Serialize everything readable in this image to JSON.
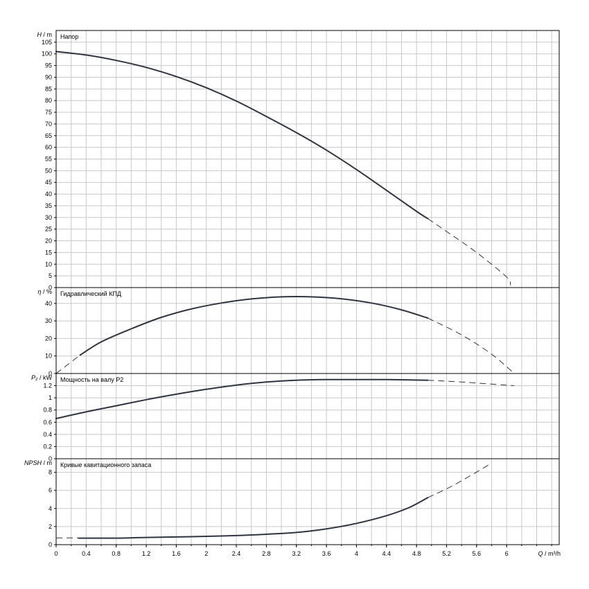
{
  "chart_data": [
    {
      "type": "line",
      "title": "Напор",
      "ylabel_var": "H",
      "ylabel_unit": " / m",
      "ylim": [
        0,
        110
      ],
      "yticks": [
        0,
        5,
        10,
        15,
        20,
        25,
        30,
        35,
        40,
        45,
        50,
        55,
        60,
        65,
        70,
        75,
        80,
        85,
        90,
        95,
        100,
        105
      ],
      "series": [
        {
          "style": "solid",
          "points": [
            [
              0.0,
              101
            ],
            [
              0.4,
              99.5
            ],
            [
              0.8,
              97.2
            ],
            [
              1.2,
              94.2
            ],
            [
              1.6,
              90.3
            ],
            [
              2.0,
              85.5
            ],
            [
              2.4,
              79.8
            ],
            [
              2.8,
              73.2
            ],
            [
              3.2,
              66.3
            ],
            [
              3.6,
              58.8
            ],
            [
              4.0,
              50.5
            ],
            [
              4.4,
              41.6
            ],
            [
              4.8,
              32.6
            ],
            [
              4.95,
              29.5
            ]
          ]
        },
        {
          "style": "dashed",
          "points": [
            [
              4.95,
              29.5
            ],
            [
              5.2,
              24
            ],
            [
              5.6,
              15
            ],
            [
              6.0,
              4.5
            ],
            [
              6.05,
              1
            ]
          ]
        }
      ]
    },
    {
      "type": "line",
      "title": "Гидравлический КПД",
      "ylabel_var": "η",
      "ylabel_unit": " / %",
      "ylim": [
        0,
        49
      ],
      "yticks": [
        0,
        10,
        20,
        30,
        40
      ],
      "series": [
        {
          "style": "solid",
          "points": [
            [
              0.32,
              10.5
            ],
            [
              0.6,
              18
            ],
            [
              1.0,
              25.5
            ],
            [
              1.4,
              32
            ],
            [
              1.8,
              36.8
            ],
            [
              2.2,
              40.2
            ],
            [
              2.6,
              42.5
            ],
            [
              3.0,
              43.7
            ],
            [
              3.4,
              43.7
            ],
            [
              3.8,
              42.6
            ],
            [
              4.2,
              40.2
            ],
            [
              4.6,
              36.3
            ],
            [
              4.95,
              31.6
            ]
          ]
        },
        {
          "style": "dashed",
          "points": [
            [
              0.0,
              0
            ],
            [
              0.32,
              10.5
            ]
          ]
        },
        {
          "style": "dashed",
          "points": [
            [
              4.95,
              31.6
            ],
            [
              5.4,
              22
            ],
            [
              5.8,
              11
            ],
            [
              6.1,
              0
            ]
          ]
        }
      ]
    },
    {
      "type": "line",
      "title": "Мощность на валу P2",
      "ylabel_var": "P₂",
      "ylabel_unit": " / kW",
      "ylim": [
        0,
        1.4
      ],
      "yticks": [
        0,
        0.2,
        0.4,
        0.6,
        0.8,
        1,
        1.2
      ],
      "series": [
        {
          "style": "solid",
          "points": [
            [
              0.0,
              0.66
            ],
            [
              0.4,
              0.77
            ],
            [
              0.8,
              0.87
            ],
            [
              1.2,
              0.97
            ],
            [
              1.6,
              1.06
            ],
            [
              2.0,
              1.14
            ],
            [
              2.4,
              1.21
            ],
            [
              2.8,
              1.26
            ],
            [
              3.2,
              1.29
            ],
            [
              3.6,
              1.3
            ],
            [
              4.0,
              1.3
            ],
            [
              4.4,
              1.3
            ],
            [
              4.95,
              1.29
            ]
          ]
        },
        {
          "style": "dashed",
          "points": [
            [
              4.95,
              1.29
            ],
            [
              5.4,
              1.26
            ],
            [
              6.1,
              1.2
            ]
          ]
        }
      ]
    },
    {
      "type": "line",
      "title": "Кривые кавитационного запаса",
      "ylabel_var": "NPSH",
      "ylabel_unit": " / m",
      "ylim": [
        0,
        9.5
      ],
      "yticks": [
        0,
        2,
        4,
        6,
        8
      ],
      "series": [
        {
          "style": "dashed",
          "points": [
            [
              0.0,
              0.75
            ],
            [
              0.3,
              0.75
            ]
          ]
        },
        {
          "style": "solid",
          "points": [
            [
              0.3,
              0.72
            ],
            [
              0.8,
              0.72
            ],
            [
              1.2,
              0.8
            ],
            [
              1.6,
              0.85
            ],
            [
              2.0,
              0.92
            ],
            [
              2.4,
              1.0
            ],
            [
              2.8,
              1.15
            ],
            [
              3.2,
              1.35
            ],
            [
              3.6,
              1.75
            ],
            [
              4.0,
              2.35
            ],
            [
              4.4,
              3.2
            ],
            [
              4.7,
              4.1
            ],
            [
              4.95,
              5.2
            ]
          ]
        },
        {
          "style": "dashed",
          "points": [
            [
              4.95,
              5.2
            ],
            [
              5.3,
              6.6
            ],
            [
              5.8,
              9.0
            ]
          ]
        }
      ]
    }
  ],
  "x_axis": {
    "label": "Q / m³/h",
    "label_var": "Q",
    "label_unit": " / m³/h",
    "xlim": [
      0,
      6.7
    ],
    "ticks": [
      0,
      0.4,
      0.8,
      1.2,
      1.6,
      2,
      2.4,
      2.8,
      3.2,
      3.6,
      4,
      4.4,
      4.8,
      5.2,
      5.6,
      6
    ],
    "grid_step": 0.2
  }
}
